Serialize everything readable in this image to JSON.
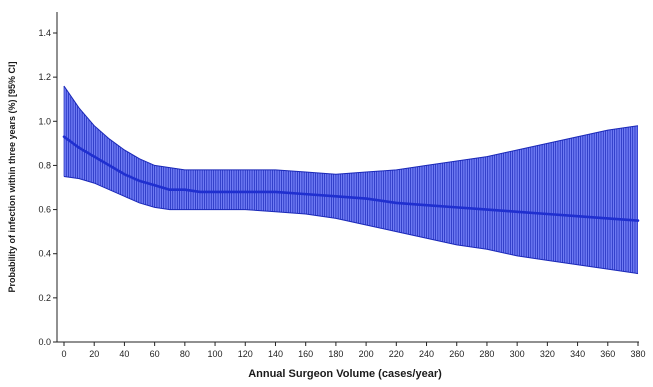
{
  "chart_data": {
    "type": "line",
    "title": "",
    "xlabel": "Annual Surgeon Volume (cases/year)",
    "ylabel": "Probability of infection within three years (%) [95% CI]",
    "xlim": [
      0,
      380
    ],
    "ylim": [
      0.0,
      1.4
    ],
    "xticks": [
      0,
      20,
      40,
      60,
      80,
      100,
      120,
      140,
      160,
      180,
      200,
      220,
      240,
      260,
      280,
      300,
      320,
      340,
      360,
      380
    ],
    "yticks": [
      0.0,
      0.2,
      0.4,
      0.6,
      0.8,
      1.0,
      1.2,
      1.4
    ],
    "ytick_labels": [
      "0.0",
      "0.2",
      "0.4",
      "0.6",
      "0.8",
      "1.0",
      "1.2",
      "1.4"
    ],
    "grid": false,
    "legend": "none",
    "series": [
      {
        "x": [
          0,
          10,
          20,
          30,
          40,
          50,
          60,
          70,
          80,
          90,
          100,
          120,
          140,
          160,
          180,
          200,
          220,
          240,
          260,
          280,
          300,
          320,
          340,
          360,
          380
        ],
        "y": [
          0.93,
          0.88,
          0.84,
          0.8,
          0.76,
          0.73,
          0.71,
          0.69,
          0.69,
          0.68,
          0.68,
          0.68,
          0.68,
          0.67,
          0.66,
          0.65,
          0.63,
          0.62,
          0.61,
          0.6,
          0.59,
          0.58,
          0.57,
          0.56,
          0.55
        ],
        "ci_upper": [
          1.16,
          1.06,
          0.98,
          0.92,
          0.87,
          0.83,
          0.8,
          0.79,
          0.78,
          0.78,
          0.78,
          0.78,
          0.78,
          0.77,
          0.76,
          0.77,
          0.78,
          0.8,
          0.82,
          0.84,
          0.87,
          0.9,
          0.93,
          0.96,
          0.98
        ],
        "ci_lower": [
          0.75,
          0.74,
          0.72,
          0.69,
          0.66,
          0.63,
          0.61,
          0.6,
          0.6,
          0.6,
          0.6,
          0.6,
          0.59,
          0.58,
          0.56,
          0.53,
          0.5,
          0.47,
          0.44,
          0.42,
          0.39,
          0.37,
          0.35,
          0.33,
          0.31
        ]
      }
    ],
    "colors": {
      "line": "#1f2fd0",
      "band_fill": "#3f4ff0",
      "band_stroke": "#1a28b8"
    }
  }
}
